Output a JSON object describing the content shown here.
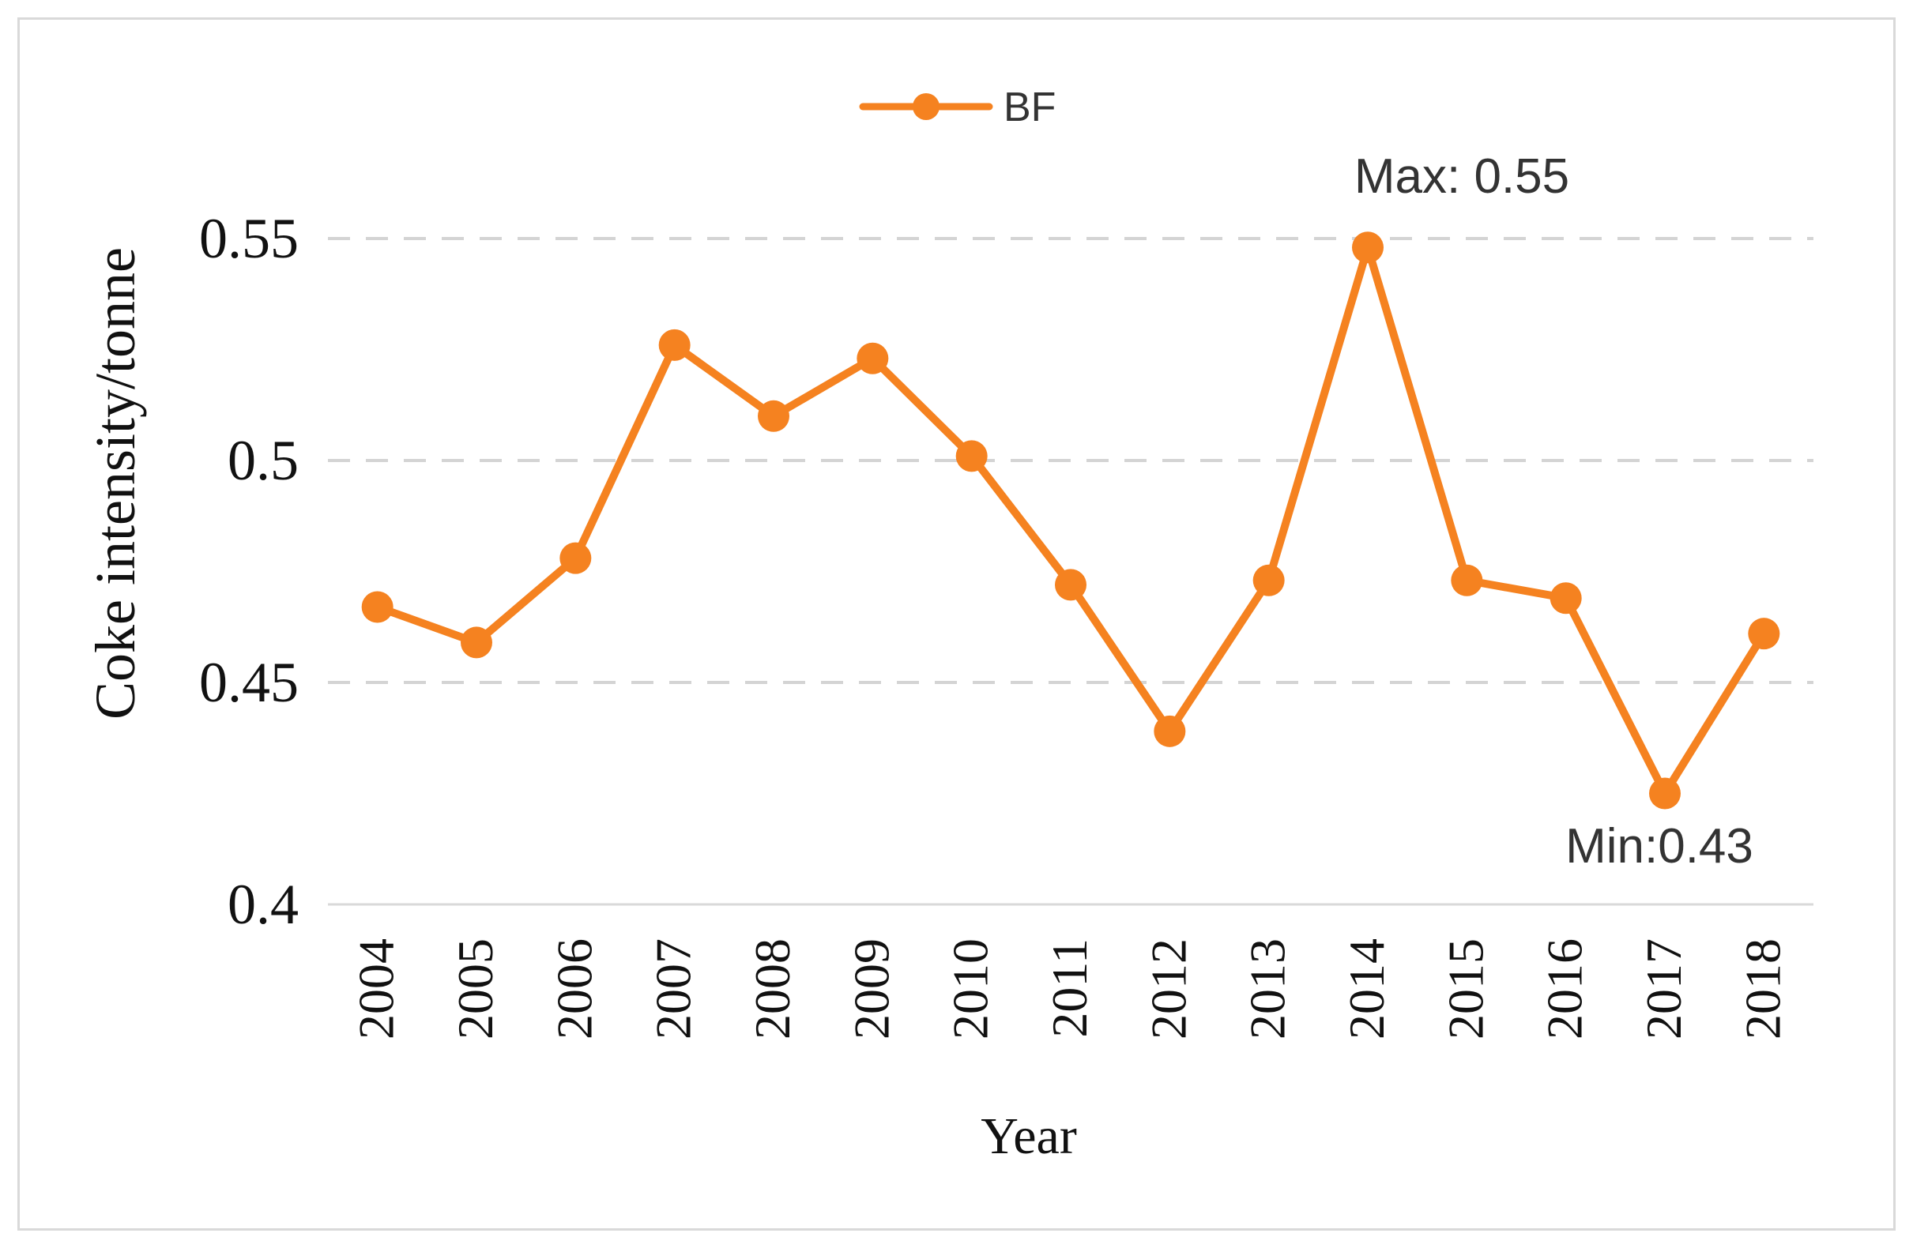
{
  "chart_data": {
    "type": "line",
    "title": "",
    "xlabel": "Year",
    "ylabel": "Coke intensity/tonne",
    "categories": [
      "2004",
      "2005",
      "2006",
      "2007",
      "2008",
      "2009",
      "2010",
      "2011",
      "2012",
      "2013",
      "2014",
      "2015",
      "2016",
      "2017",
      "2018"
    ],
    "series": [
      {
        "name": "BF",
        "values": [
          0.467,
          0.459,
          0.478,
          0.526,
          0.51,
          0.523,
          0.501,
          0.472,
          0.439,
          0.473,
          0.548,
          0.473,
          0.469,
          0.425,
          0.461
        ],
        "color": "#F58220"
      }
    ],
    "ylim": [
      0.4,
      0.55
    ],
    "yticks": [
      "0.4",
      "0.45",
      "0.5",
      "0.55"
    ],
    "ytick_values": [
      0.4,
      0.45,
      0.5,
      0.55
    ],
    "grid": true,
    "legend": "top-center",
    "annotations": {
      "max": "Max:  0.55",
      "min": "Min:0.43"
    }
  }
}
